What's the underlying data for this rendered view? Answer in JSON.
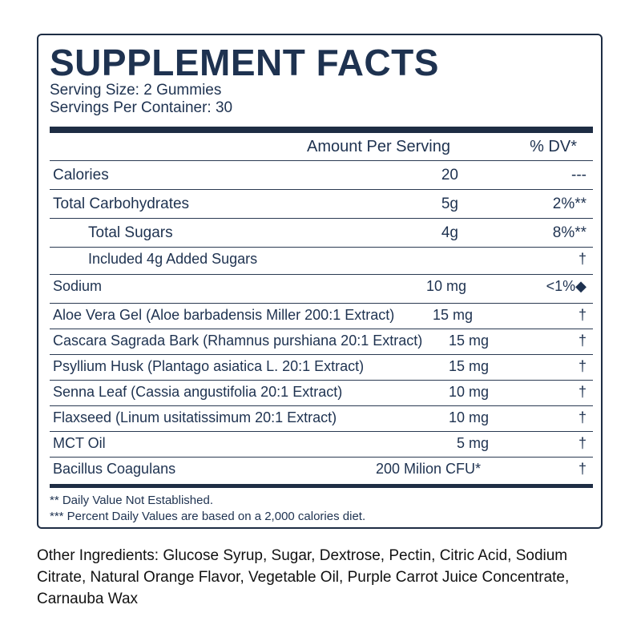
{
  "title": "SUPPLEMENT FACTS",
  "serving_size": "Serving Size: 2 Gummies",
  "servings_per_container": "Servings Per Container: 30",
  "header": {
    "amount": "Amount Per Serving",
    "dv": "% DV*"
  },
  "rows": [
    {
      "name": "Calories",
      "amount": "20",
      "dv": "---"
    },
    {
      "name": "Total Carbohydrates",
      "amount": "5g",
      "dv": "2%**"
    },
    {
      "name": "Total Sugars",
      "amount": "4g",
      "dv": "8%**"
    },
    {
      "name": "Included 4g Added Sugars",
      "amount": "",
      "dv": "†"
    },
    {
      "name": "Sodium",
      "amount": "10 mg",
      "dv": "<1%◆"
    },
    {
      "name": "Aloe Vera Gel (Aloe barbadensis Miller 200:1 Extract)",
      "amount": "15 mg",
      "dv": "†"
    },
    {
      "name": "Cascara Sagrada Bark (Rhamnus purshiana 20:1 Extract)",
      "amount": "15 mg",
      "dv": "†"
    },
    {
      "name": "Psyllium Husk (Plantago asiatica L. 20:1 Extract)",
      "amount": "15 mg",
      "dv": "†"
    },
    {
      "name": "Senna Leaf (Cassia angustifolia 20:1 Extract)",
      "amount": "10 mg",
      "dv": "†"
    },
    {
      "name": "Flaxseed (Linum usitatissimum 20:1 Extract)",
      "amount": "10 mg",
      "dv": "†"
    },
    {
      "name": "MCT Oil",
      "amount": "5 mg",
      "dv": "†"
    },
    {
      "name": "Bacillus Coagulans",
      "amount": "200 Milion CFU*",
      "dv": "†"
    }
  ],
  "footnotes": [
    "** Daily Value Not Established.",
    "*** Percent Daily Values are based on a 2,000 calories diet."
  ],
  "other_ingredients": "Other Ingredients: Glucose Syrup, Sugar, Dextrose, Pectin, Citric Acid, Sodium Citrate, Natural Orange Flavor, Vegetable Oil, Purple Carrot Juice Concentrate, Carnauba Wax"
}
